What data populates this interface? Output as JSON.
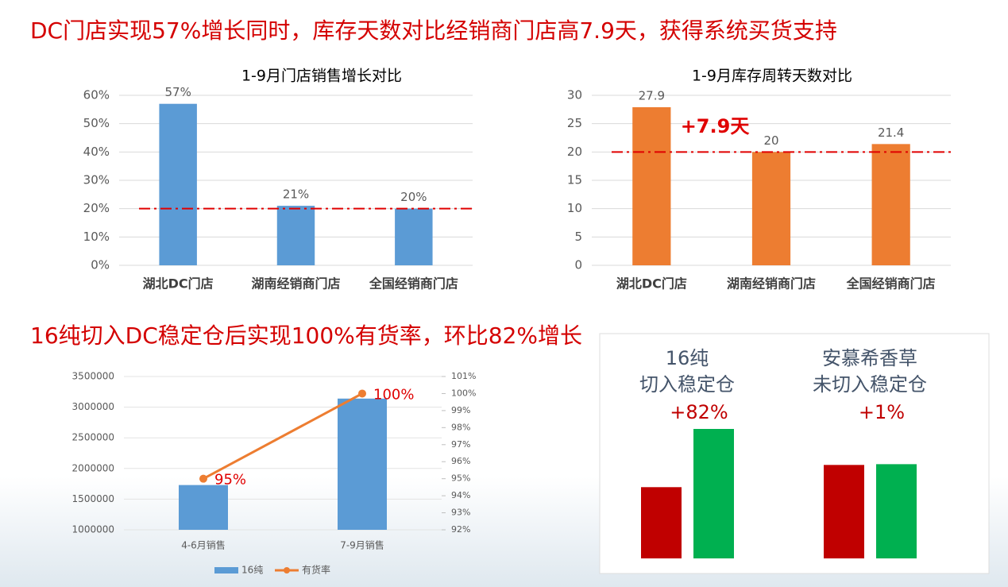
{
  "headlines": [
    "DC门店实现57%增长同时，库存天数对比经销商门店高7.9天，获得系统买货支持",
    "16纯切入DC稳定仓后实现100%有货率，环比82%增长"
  ],
  "chart_data": [
    {
      "type": "bar",
      "title": "1-9月门店销售增长对比",
      "categories": [
        "湖北DC门店",
        "湖南经销商门店",
        "全国经销商门店"
      ],
      "values": [
        57,
        21,
        20
      ],
      "value_labels": [
        "57%",
        "21%",
        "20%"
      ],
      "color": "#5b9bd5",
      "ylim": [
        0,
        60
      ],
      "yticks": [
        {
          "value": 0,
          "label": "0%"
        },
        {
          "value": 10,
          "label": "10%"
        },
        {
          "value": 20,
          "label": "20%"
        },
        {
          "value": 30,
          "label": "30%"
        },
        {
          "value": 40,
          "label": "40%"
        },
        {
          "value": 50,
          "label": "50%"
        },
        {
          "value": 60,
          "label": "60%"
        }
      ],
      "grid": true,
      "ref_line": 20,
      "ref_color": "#e00000"
    },
    {
      "type": "bar",
      "title": "1-9月库存周转天数对比",
      "categories": [
        "湖北DC门店",
        "湖南经销商门店",
        "全国经销商门店"
      ],
      "values": [
        27.9,
        20,
        21.4
      ],
      "color": "#ed7d31",
      "ylim": [
        0,
        30
      ],
      "yticks": [
        0,
        5,
        10,
        15,
        20,
        25,
        30
      ],
      "grid": true,
      "ref_line": 20,
      "ref_color": "#e00000",
      "annotation": "+7.9天"
    },
    {
      "type": "combo",
      "categories": [
        "4-6月销售",
        "7-9月销售"
      ],
      "series": [
        {
          "name": "16纯",
          "color": "#5b9bd5",
          "values": [
            1730000,
            3140000
          ]
        },
        {
          "name": "有货率",
          "color": "#ed7d31",
          "axis": "y2",
          "values": [
            95,
            100
          ],
          "value_labels": [
            "95%",
            "100%"
          ]
        }
      ],
      "ylim": [
        1000000,
        3500000
      ],
      "yticks": [
        1000000,
        1500000,
        2000000,
        2500000,
        3000000,
        3500000
      ],
      "y2lim": [
        92,
        101
      ],
      "y2ticks": [
        {
          "value": 92,
          "label": "92%"
        },
        {
          "value": 93,
          "label": "93%"
        },
        {
          "value": 94,
          "label": "94%"
        },
        {
          "value": 95,
          "label": "95%"
        },
        {
          "value": 96,
          "label": "96%"
        },
        {
          "value": 97,
          "label": "97%"
        },
        {
          "value": 98,
          "label": "98%"
        },
        {
          "value": 99,
          "label": "99%"
        },
        {
          "value": 100,
          "label": "100%"
        },
        {
          "value": 101,
          "label": "101%"
        }
      ],
      "grid": true
    },
    {
      "type": "bar",
      "categories": [
        [
          "16纯",
          "切入稳定仓"
        ],
        [
          "安慕希香草",
          "未切入稳定仓"
        ]
      ],
      "annotations": [
        "+82%",
        "+1%"
      ],
      "series": [
        {
          "color": "#c00000",
          "values": [
            93,
            122
          ]
        },
        {
          "color": "#00b050",
          "values": [
            169,
            123
          ]
        }
      ]
    }
  ]
}
